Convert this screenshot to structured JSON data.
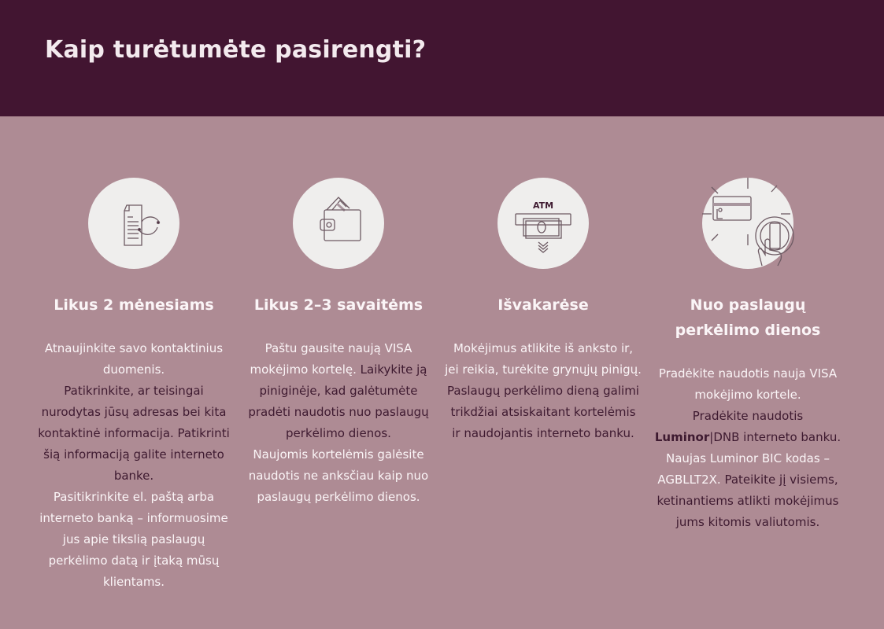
{
  "header": {
    "title": "Kaip turėtumėte pasirengti?"
  },
  "colors": {
    "header_bg": "#421531",
    "body_bg": "#ae8b94",
    "circle": "#efeeed",
    "dark_text": "#3e1a30",
    "light_text": "#fbf5f7"
  },
  "steps": [
    {
      "icon": "document-refresh-icon",
      "heading": "Likus 2 mėnesiams",
      "p1": "Atnaujinkite savo kontaktinius duomenis.",
      "p2": "Patikrinkite, ar teisingai nurodytas jūsų adresas bei kita kontaktinė informacija. Patikrinti šią informaciją galite interneto banke.",
      "p3": "Pasitikrinkite el. paštą arba interneto banką – informuosime jus apie tikslią paslaugų perkėlimo datą ir įtaką mūsų klientams."
    },
    {
      "icon": "wallet-card-icon",
      "heading": "Likus 2–3 savaitėms",
      "p1": "Paštu gausite naują VISA mokėjimo kortelę.",
      "p2": "Laikykite ją piniginėje, kad galėtumėte pradėti naudotis nuo paslaugų perkėlimo dienos.",
      "p3": "Naujomis kortelėmis galėsite naudotis ne anksčiau kaip nuo paslaugų perkėlimo dienos."
    },
    {
      "icon": "atm-cash-icon",
      "icon_label": "ATM",
      "heading": "Išvakarėse",
      "p1": "Mokėjimus atlikite iš anksto ir, jei reikia, turėkite grynųjų pinigų.",
      "p2": "Paslaugų perkėlimo dieną galimi trikdžiai atsiskaitant kortelėmis ir naudojantis interneto banku."
    },
    {
      "icon": "card-tap-icon",
      "heading": "Nuo paslaugų perkėlimo dienos",
      "p1": "Pradėkite naudotis nauja VISA mokėjimo kortele.",
      "p2a": "Pradėkite naudotis",
      "p2b": "Luminor",
      "p2c": "|DNB interneto banku.",
      "p3": "Naujas Luminor BIC kodas – AGBLLT2X.",
      "p4": "Pateikite jį visiems, ketinantiems atlikti mokėjimus jums kitomis valiutomis."
    }
  ]
}
